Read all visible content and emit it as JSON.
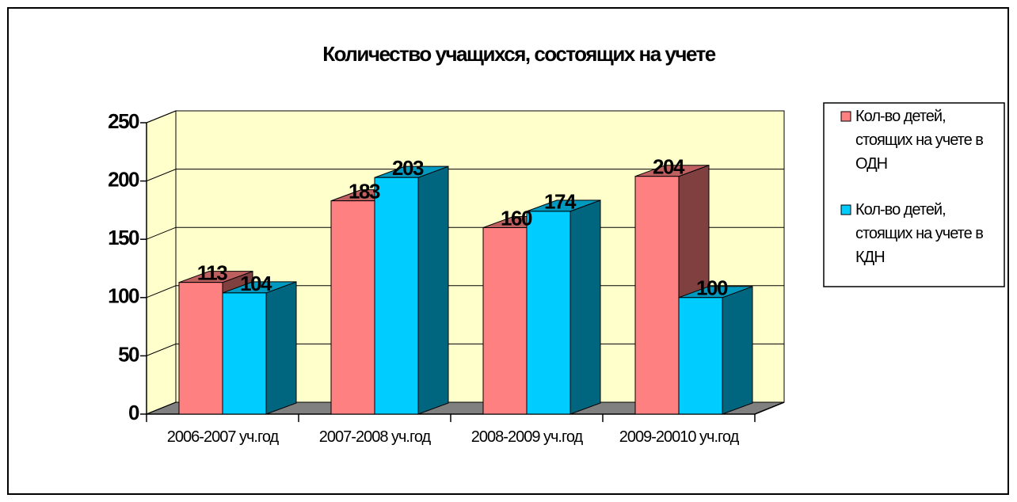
{
  "chart_data": {
    "type": "bar3d",
    "title": "Количество учащихся, состоящих на учете",
    "categories": [
      "2006-2007 уч.год",
      "2007-2008 уч.год",
      "2008-2009 уч.год",
      "2009-20010 уч.год"
    ],
    "series": [
      {
        "name": "Кол-во детей, стоящих на учете в ОДН",
        "color": "#ff8080",
        "values": [
          113,
          183,
          160,
          204
        ]
      },
      {
        "name": "Кол-во детей, стоящих на учете в КДН",
        "color": "#00ccff",
        "values": [
          104,
          203,
          174,
          100
        ]
      }
    ],
    "ylim": [
      0,
      250
    ],
    "yticks": [
      0,
      50,
      100,
      150,
      200,
      250
    ],
    "grid": true,
    "legend": "right"
  }
}
